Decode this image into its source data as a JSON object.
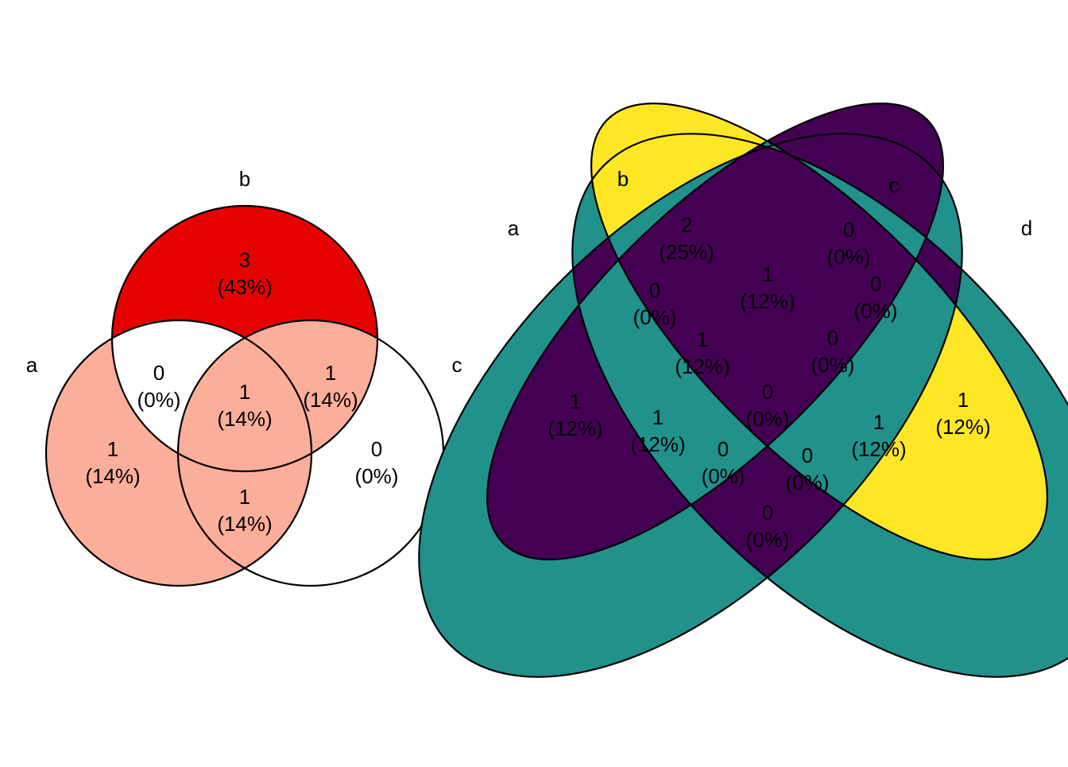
{
  "venn3": {
    "set_labels": {
      "a": "a",
      "b": "b",
      "c": "c"
    },
    "colors": {
      "high": "#e60000",
      "mid": "#fbae9a",
      "low": "#ffffff"
    },
    "regions": {
      "b_only": {
        "count": "3",
        "pct": "(43%)",
        "level": "high"
      },
      "a_b": {
        "count": "0",
        "pct": "(0%)",
        "level": "low"
      },
      "b_c": {
        "count": "1",
        "pct": "(14%)",
        "level": "mid"
      },
      "a_b_c": {
        "count": "1",
        "pct": "(14%)",
        "level": "mid"
      },
      "a_only": {
        "count": "1",
        "pct": "(14%)",
        "level": "mid"
      },
      "a_c": {
        "count": "1",
        "pct": "(14%)",
        "level": "mid"
      },
      "c_only": {
        "count": "0",
        "pct": "(0%)",
        "level": "low"
      }
    }
  },
  "venn4": {
    "set_labels": {
      "a": "a",
      "b": "b",
      "c": "c",
      "d": "d"
    },
    "colors": {
      "high": "#fde725",
      "mid": "#21918c",
      "low": "#440154"
    },
    "regions": {
      "b_only": {
        "count": "2",
        "pct": "(25%)",
        "level": "high"
      },
      "c_only": {
        "count": "0",
        "pct": "(0%)",
        "level": "low"
      },
      "a_b": {
        "count": "0",
        "pct": "(0%)",
        "level": "low"
      },
      "b_c": {
        "count": "1",
        "pct": "(12%)",
        "level": "mid"
      },
      "c_d": {
        "count": "0",
        "pct": "(0%)",
        "level": "low"
      },
      "a_b_c": {
        "count": "1",
        "pct": "(12%)",
        "level": "mid"
      },
      "b_c_d": {
        "count": "0",
        "pct": "(0%)",
        "level": "low"
      },
      "a_only": {
        "count": "1",
        "pct": "(12%)",
        "level": "mid"
      },
      "d_only": {
        "count": "1",
        "pct": "(12%)",
        "level": "mid"
      },
      "a_b_d": {
        "count": "1",
        "pct": "(12%)",
        "level": "mid"
      },
      "a_b_c_d": {
        "count": "0",
        "pct": "(0%)",
        "level": "low"
      },
      "a_c_d": {
        "count": "1",
        "pct": "(12%)",
        "level": "mid"
      },
      "a_b_d2": {
        "count": "0",
        "pct": "(0%)",
        "level": "low"
      },
      "a_c_d2": {
        "count": "0",
        "pct": "(0%)",
        "level": "low"
      },
      "a_d": {
        "count": "0",
        "pct": "(0%)",
        "level": "low"
      }
    }
  }
}
